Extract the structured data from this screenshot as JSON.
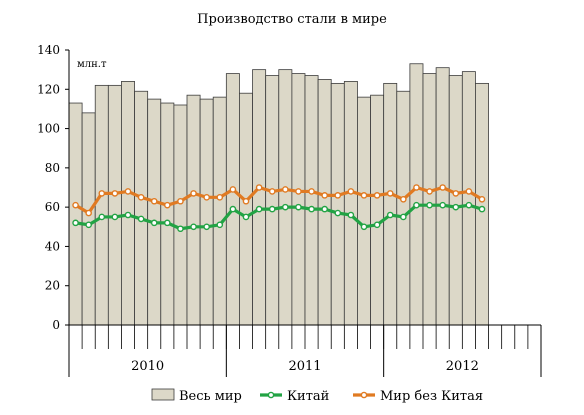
{
  "chart_data": {
    "type": "bar",
    "title": "Производство стали в мире",
    "unit_label": "млн.т",
    "ylim": [
      0,
      140
    ],
    "yticks": [
      0,
      20,
      40,
      60,
      80,
      100,
      120,
      140
    ],
    "grid": false,
    "legend_position": "bottom",
    "year_labels": [
      "2010",
      "2011",
      "2012"
    ],
    "x_months": 36,
    "series": [
      {
        "name": "Весь мир",
        "type": "bar",
        "color": "#dcd8c8",
        "values": [
          113,
          108,
          122,
          122,
          124,
          119,
          115,
          113,
          112,
          117,
          115,
          116,
          128,
          118,
          130,
          127,
          130,
          128,
          127,
          125,
          123,
          124,
          116,
          117,
          123,
          119,
          133,
          128,
          131,
          127,
          129,
          123
        ]
      },
      {
        "name": "Китай",
        "type": "line",
        "color": "#22a344",
        "values": [
          52,
          51,
          55,
          55,
          56,
          54,
          52,
          52,
          49,
          50,
          50,
          51,
          59,
          55,
          59,
          59,
          60,
          60,
          59,
          59,
          57,
          56,
          50,
          51,
          56,
          55,
          61,
          61,
          61,
          60,
          61,
          59
        ]
      },
      {
        "name": "Мир без Китая",
        "type": "line",
        "color": "#e07a22",
        "values": [
          61,
          57,
          67,
          67,
          68,
          65,
          63,
          61,
          63,
          67,
          65,
          65,
          69,
          63,
          70,
          68,
          69,
          68,
          68,
          66,
          66,
          68,
          66,
          66,
          67,
          64,
          70,
          68,
          70,
          67,
          68,
          64
        ]
      }
    ]
  }
}
